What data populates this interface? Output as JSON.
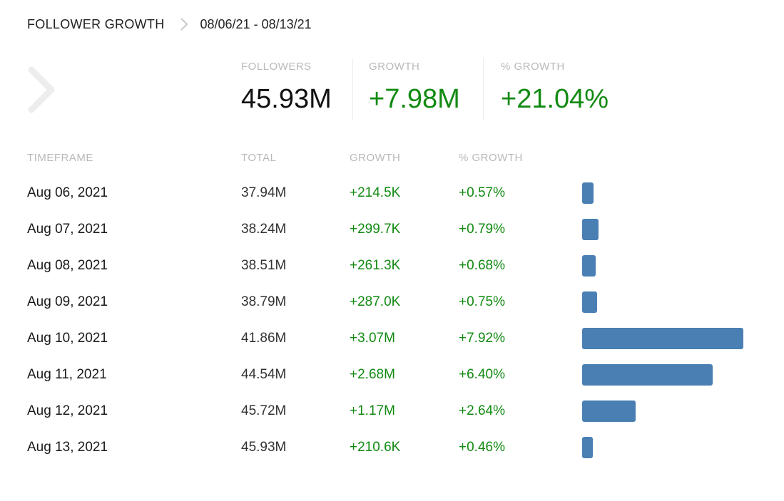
{
  "header": {
    "title": "FOLLOWER GROWTH",
    "date_range": "08/06/21 - 08/13/21"
  },
  "summary": {
    "followers_label": "FOLLOWERS",
    "followers_value": "45.93M",
    "growth_label": "GROWTH",
    "growth_value": "+7.98M",
    "pct_growth_label": "% GROWTH",
    "pct_growth_value": "+21.04%"
  },
  "table": {
    "headers": {
      "timeframe": "TIMEFRAME",
      "total": "TOTAL",
      "growth": "GROWTH",
      "pct_growth": "% GROWTH"
    },
    "rows": [
      {
        "date": "Aug 06, 2021",
        "total": "37.94M",
        "growth": "+214.5K",
        "pct": "+0.57%",
        "pct_value": 0.57
      },
      {
        "date": "Aug 07, 2021",
        "total": "38.24M",
        "growth": "+299.7K",
        "pct": "+0.79%",
        "pct_value": 0.79
      },
      {
        "date": "Aug 08, 2021",
        "total": "38.51M",
        "growth": "+261.3K",
        "pct": "+0.68%",
        "pct_value": 0.68
      },
      {
        "date": "Aug 09, 2021",
        "total": "38.79M",
        "growth": "+287.0K",
        "pct": "+0.75%",
        "pct_value": 0.75
      },
      {
        "date": "Aug 10, 2021",
        "total": "41.86M",
        "growth": "+3.07M",
        "pct": "+7.92%",
        "pct_value": 7.92
      },
      {
        "date": "Aug 11, 2021",
        "total": "44.54M",
        "growth": "+2.68M",
        "pct": "+6.40%",
        "pct_value": 6.4
      },
      {
        "date": "Aug 12, 2021",
        "total": "45.72M",
        "growth": "+1.17M",
        "pct": "+2.64%",
        "pct_value": 2.64
      },
      {
        "date": "Aug 13, 2021",
        "total": "45.93M",
        "growth": "+210.6K",
        "pct": "+0.46%",
        "pct_value": 0.46
      }
    ]
  },
  "colors": {
    "accent_green": "#128a12",
    "bar_blue": "#4a7fb3",
    "label_gray": "#b9b9b9"
  },
  "icons": {
    "header_separator": "chevron-right-icon",
    "nav": "chevron-right-icon"
  }
}
